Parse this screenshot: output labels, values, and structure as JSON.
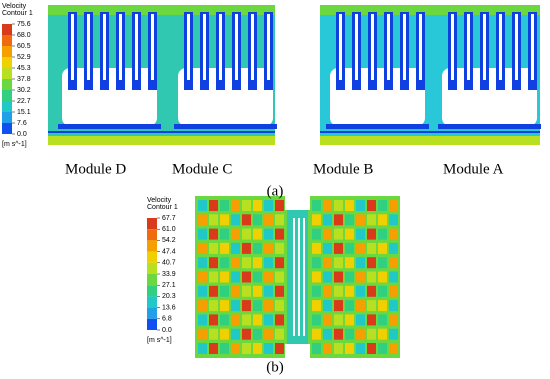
{
  "panel_a": {
    "legend": {
      "title": [
        "Velocity",
        "Contour 1"
      ],
      "ticks": [
        "75.6",
        "68.0",
        "60.5",
        "52.9",
        "45.3",
        "37.8",
        "30.2",
        "22.7",
        "15.1",
        "7.6",
        "0.0"
      ],
      "unit": "[m s^-1]"
    },
    "modules": [
      "Module D",
      "Module C",
      "Module B",
      "Module A"
    ],
    "label": "(a)"
  },
  "panel_b": {
    "legend": {
      "title": [
        "Velocity",
        "Contour 1"
      ],
      "ticks": [
        "67.7",
        "61.0",
        "54.2",
        "47.4",
        "40.7",
        "33.9",
        "27.1",
        "20.3",
        "13.6",
        "6.8",
        "0.0"
      ],
      "unit": "[m s^-1]"
    },
    "label": "(b)"
  }
}
